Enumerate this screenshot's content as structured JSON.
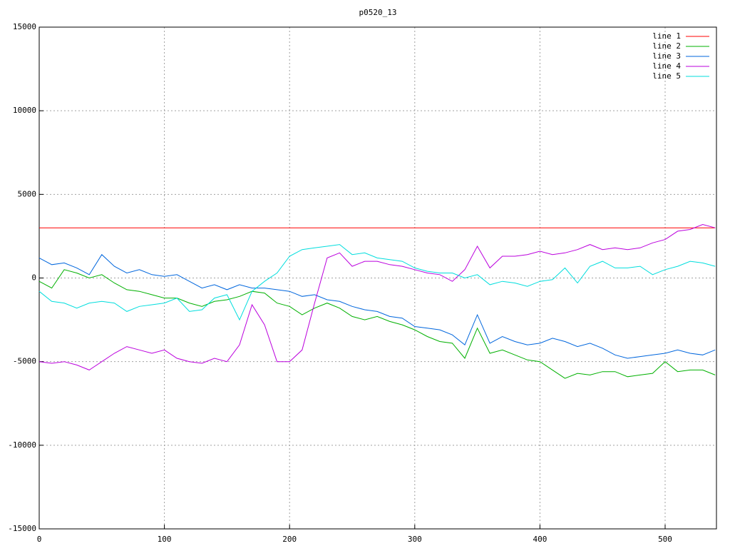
{
  "chart_data": {
    "type": "line",
    "title": "p0520_13",
    "x": [
      0,
      10,
      20,
      30,
      40,
      50,
      60,
      70,
      80,
      90,
      100,
      110,
      120,
      130,
      140,
      150,
      160,
      170,
      180,
      190,
      200,
      210,
      220,
      230,
      240,
      250,
      260,
      270,
      280,
      290,
      300,
      310,
      320,
      330,
      340,
      350,
      360,
      370,
      380,
      390,
      400,
      410,
      420,
      430,
      440,
      450,
      460,
      470,
      480,
      490,
      500,
      510,
      520,
      530,
      540
    ],
    "series": [
      {
        "name": "line 1",
        "color": "#ff0000",
        "values": [
          3000,
          3000,
          3000,
          3000,
          3000,
          3000,
          3000,
          3000,
          3000,
          3000,
          3000,
          3000,
          3000,
          3000,
          3000,
          3000,
          3000,
          3000,
          3000,
          3000,
          3000,
          3000,
          3000,
          3000,
          3000,
          3000,
          3000,
          3000,
          3000,
          3000,
          3000,
          3000,
          3000,
          3000,
          3000,
          3000,
          3000,
          3000,
          3000,
          3000,
          3000,
          3000,
          3000,
          3000,
          3000,
          3000,
          3000,
          3000,
          3000,
          3000,
          3000,
          3000,
          3000,
          3000,
          3000
        ]
      },
      {
        "name": "line 2",
        "color": "#00b000",
        "values": [
          -200,
          -600,
          500,
          300,
          0,
          200,
          -300,
          -700,
          -800,
          -1000,
          -1200,
          -1200,
          -1500,
          -1700,
          -1400,
          -1300,
          -1100,
          -800,
          -900,
          -1500,
          -1700,
          -2200,
          -1800,
          -1500,
          -1800,
          -2300,
          -2500,
          -2300,
          -2600,
          -2800,
          -3100,
          -3500,
          -3800,
          -3900,
          -4800,
          -3000,
          -4500,
          -4300,
          -4600,
          -4900,
          -5000,
          -5500,
          -6000,
          -5700,
          -5800,
          -5600,
          -5600,
          -5900,
          -5800,
          -5700,
          -5000,
          -5600,
          -5500,
          -5500,
          -5800
        ]
      },
      {
        "name": "line 3",
        "color": "#0066dd",
        "values": [
          1200,
          800,
          900,
          600,
          200,
          1400,
          700,
          300,
          500,
          200,
          100,
          200,
          -200,
          -600,
          -400,
          -700,
          -400,
          -600,
          -600,
          -700,
          -800,
          -1100,
          -1000,
          -1300,
          -1400,
          -1700,
          -1900,
          -2000,
          -2300,
          -2400,
          -2900,
          -3000,
          -3100,
          -3400,
          -4000,
          -2200,
          -3900,
          -3500,
          -3800,
          -4000,
          -3900,
          -3600,
          -3800,
          -4100,
          -3900,
          -4200,
          -4600,
          -4800,
          -4700,
          -4600,
          -4500,
          -4300,
          -4500,
          -4600,
          -4300
        ]
      },
      {
        "name": "line 4",
        "color": "#bb00dd",
        "values": [
          -5000,
          -5100,
          -5000,
          -5200,
          -5500,
          -5000,
          -4500,
          -4100,
          -4300,
          -4500,
          -4300,
          -4800,
          -5000,
          -5100,
          -4800,
          -5000,
          -4000,
          -1600,
          -2800,
          -5000,
          -5000,
          -4300,
          -1500,
          1200,
          1500,
          700,
          1000,
          1000,
          800,
          700,
          500,
          300,
          200,
          -200,
          500,
          1900,
          600,
          1300,
          1300,
          1400,
          1600,
          1400,
          1500,
          1700,
          2000,
          1700,
          1800,
          1700,
          1800,
          2100,
          2300,
          2800,
          2900,
          3200,
          3000
        ]
      },
      {
        "name": "line 5",
        "color": "#00dddd",
        "values": [
          -800,
          -1400,
          -1500,
          -1800,
          -1500,
          -1400,
          -1500,
          -2000,
          -1700,
          -1600,
          -1500,
          -1200,
          -2000,
          -1900,
          -1200,
          -1000,
          -2500,
          -800,
          -200,
          300,
          1300,
          1700,
          1800,
          1900,
          2000,
          1400,
          1500,
          1200,
          1100,
          1000,
          600,
          400,
          300,
          300,
          0,
          200,
          -400,
          -200,
          -300,
          -500,
          -200,
          -100,
          600,
          -300,
          700,
          1000,
          600,
          600,
          700,
          200,
          500,
          700,
          1000,
          900,
          700
        ]
      }
    ],
    "xlim": [
      0,
      541
    ],
    "xticks": [
      0,
      100,
      200,
      300,
      400,
      500
    ],
    "ylim": [
      -15000,
      15000
    ],
    "yticks": [
      -15000,
      -10000,
      -5000,
      0,
      5000,
      10000,
      15000
    ],
    "grid": true,
    "legend": "top-right"
  }
}
